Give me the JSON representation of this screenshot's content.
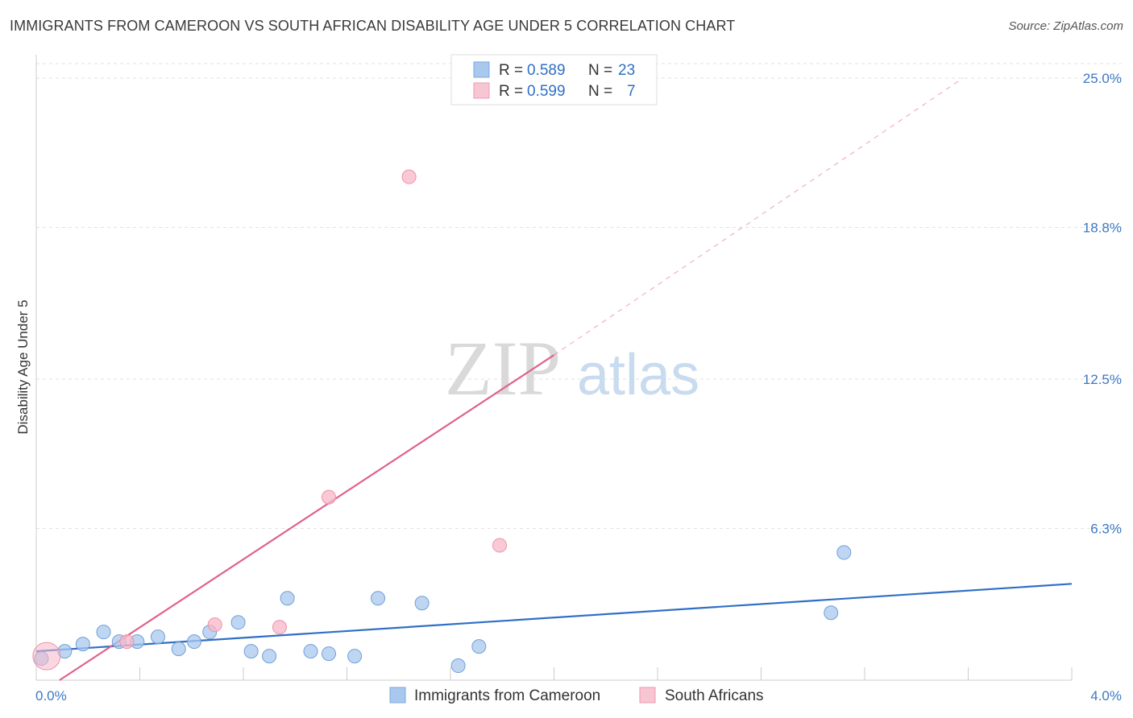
{
  "header": {
    "title": "IMMIGRANTS FROM CAMEROON VS SOUTH AFRICAN DISABILITY AGE UNDER 5 CORRELATION CHART",
    "source": "Source: ZipAtlas.com"
  },
  "watermark": {
    "zip": "ZIP",
    "atlas": "atlas"
  },
  "legend": {
    "rows": [
      {
        "r_label": "R = ",
        "r_value": "0.589",
        "n_label": "N = ",
        "n_value": "23",
        "color": "#a9c8ee"
      },
      {
        "r_label": "R = ",
        "r_value": "0.599",
        "n_label": "N = ",
        "n_value": "7",
        "color": "#f7b8c8"
      }
    ]
  },
  "chart_data": {
    "type": "scatter",
    "title": "IMMIGRANTS FROM CAMEROON VS SOUTH AFRICAN DISABILITY AGE UNDER 5 CORRELATION CHART",
    "xlabel": "",
    "ylabel": "Disability Age Under 5",
    "xlim": [
      0,
      4.0
    ],
    "ylim": [
      0,
      25.0
    ],
    "x_tick_labels": [
      "0.0%",
      "4.0%"
    ],
    "y_ticks": [
      6.3,
      12.5,
      18.8,
      25.0
    ],
    "y_tick_labels": [
      "6.3%",
      "12.5%",
      "18.8%",
      "25.0%"
    ],
    "grid": true,
    "legend_position": "top-center",
    "series": [
      {
        "name": "Immigrants from Cameroon",
        "color": "#a9c8ee",
        "stroke": "#6fa0d8",
        "trend_color": "#2f6fc6",
        "trend": {
          "x": [
            0.0,
            4.0
          ],
          "y": [
            1.2,
            4.0
          ]
        },
        "points": [
          {
            "x": 0.02,
            "y": 0.9
          },
          {
            "x": 0.11,
            "y": 1.2
          },
          {
            "x": 0.18,
            "y": 1.5
          },
          {
            "x": 0.26,
            "y": 2.0
          },
          {
            "x": 0.32,
            "y": 1.6
          },
          {
            "x": 0.39,
            "y": 1.6
          },
          {
            "x": 0.47,
            "y": 1.8
          },
          {
            "x": 0.55,
            "y": 1.3
          },
          {
            "x": 0.61,
            "y": 1.6
          },
          {
            "x": 0.67,
            "y": 2.0
          },
          {
            "x": 0.78,
            "y": 2.4
          },
          {
            "x": 0.83,
            "y": 1.2
          },
          {
            "x": 0.9,
            "y": 1.0
          },
          {
            "x": 0.97,
            "y": 3.4
          },
          {
            "x": 1.06,
            "y": 1.2
          },
          {
            "x": 1.13,
            "y": 1.1
          },
          {
            "x": 1.23,
            "y": 1.0
          },
          {
            "x": 1.32,
            "y": 3.4
          },
          {
            "x": 1.49,
            "y": 3.2
          },
          {
            "x": 1.63,
            "y": 0.6
          },
          {
            "x": 1.71,
            "y": 1.4
          },
          {
            "x": 3.07,
            "y": 2.8
          },
          {
            "x": 3.12,
            "y": 5.3
          }
        ]
      },
      {
        "name": "South Africans",
        "color": "#f7b8c8",
        "stroke": "#ee8faa",
        "trend_color": "#e0628a",
        "trend": {
          "x": [
            0.09,
            2.0
          ],
          "y": [
            0.0,
            13.5
          ]
        },
        "trend_extension": {
          "x": [
            2.0,
            3.58
          ],
          "y": [
            13.5,
            25.0
          ]
        },
        "points": [
          {
            "x": 0.04,
            "y": 1.0,
            "large": true
          },
          {
            "x": 0.35,
            "y": 1.6
          },
          {
            "x": 0.69,
            "y": 2.3
          },
          {
            "x": 0.94,
            "y": 2.2
          },
          {
            "x": 1.13,
            "y": 7.6
          },
          {
            "x": 1.44,
            "y": 20.9
          },
          {
            "x": 1.79,
            "y": 5.6
          }
        ]
      }
    ]
  }
}
